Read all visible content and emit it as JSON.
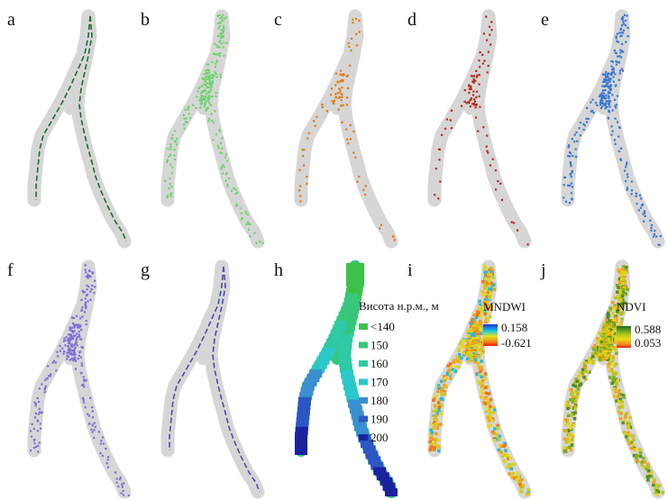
{
  "panels": [
    {
      "label": "a",
      "style": "lines",
      "color": "#1e6b35"
    },
    {
      "label": "b",
      "style": "speckle",
      "color": "#6fd36f"
    },
    {
      "label": "c",
      "style": "dots",
      "color": "#e07a10"
    },
    {
      "label": "d",
      "style": "dots",
      "color": "#b52a1c"
    },
    {
      "label": "e",
      "style": "speckle",
      "color": "#3a78d0"
    },
    {
      "label": "f",
      "style": "speckle",
      "color": "#7b6fd6"
    },
    {
      "label": "g",
      "style": "lines",
      "color": "#4a4fa8"
    },
    {
      "label": "h",
      "style": "elevation",
      "color": "#2bc06a"
    },
    {
      "label": "i",
      "style": "mndwi",
      "color": "#e89a20"
    },
    {
      "label": "j",
      "style": "ndvi",
      "color": "#c9b21a"
    }
  ],
  "elevation_legend": {
    "title": "Висота н.р.м., м",
    "items": [
      {
        "label": "<140",
        "color": "#3cc24a"
      },
      {
        "label": "150",
        "color": "#37c67a"
      },
      {
        "label": "160",
        "color": "#2fc9a4"
      },
      {
        "label": "170",
        "color": "#2bc8c8"
      },
      {
        "label": "180",
        "color": "#3a8fd0"
      },
      {
        "label": "190",
        "color": "#2c56c4"
      },
      {
        "label": "200",
        "color": "#1a22a0"
      }
    ]
  },
  "mndwi_legend": {
    "title": "MNDWI",
    "max": "0.158",
    "min": "-0.621"
  },
  "ndvi_legend": {
    "title": "NDVI",
    "max": "0.588",
    "min": "0.053"
  },
  "colors": {
    "background_mask": "#d6d6d6"
  }
}
